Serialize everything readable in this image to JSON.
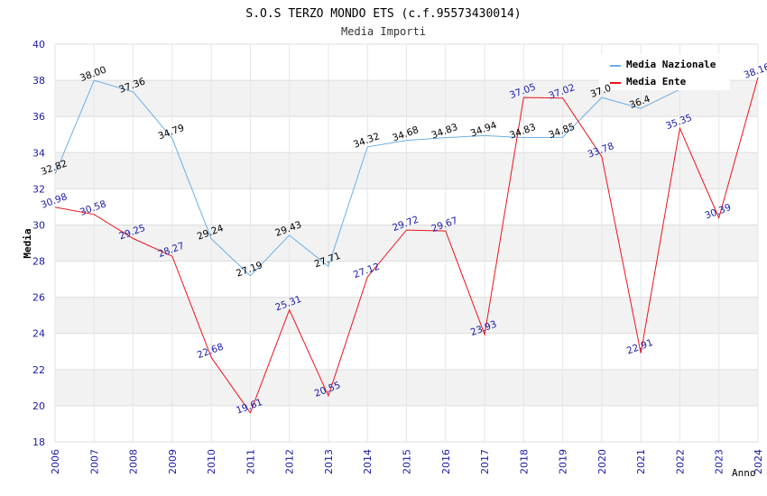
{
  "chart_data": {
    "type": "line",
    "title": "S.O.S TERZO MONDO ETS (c.f.95573430014)",
    "subtitle": "Media Importi",
    "xlabel": "Anno",
    "ylabel": "Media",
    "ylim": [
      18,
      40
    ],
    "yticks": [
      18,
      20,
      22,
      24,
      26,
      28,
      30,
      32,
      34,
      36,
      38,
      40
    ],
    "x": [
      "2006",
      "2007",
      "2008",
      "2009",
      "2010",
      "2011",
      "2012",
      "2013",
      "2014",
      "2015",
      "2016",
      "2017",
      "2018",
      "2019",
      "2020",
      "2021",
      "2022",
      "2023",
      "2024"
    ],
    "series": [
      {
        "name": "Media Nazionale",
        "color": "#6aaee8",
        "values": [
          32.82,
          38.0,
          37.36,
          34.79,
          29.24,
          27.19,
          29.43,
          27.71,
          34.32,
          34.68,
          34.83,
          34.94,
          34.83,
          34.85,
          37.05,
          36.45,
          37.5,
          null,
          null
        ],
        "labels": [
          "32.82",
          "38.00",
          "37.36",
          "34.79",
          "29.24",
          "27.19",
          "29.43",
          "27.71",
          "34.32",
          "34.68",
          "34.83",
          "34.94",
          "34.83",
          "34.85",
          "37.0",
          "36.4",
          "",
          "",
          ""
        ]
      },
      {
        "name": "Media Ente",
        "color": "#e8141b",
        "values": [
          30.98,
          30.58,
          29.25,
          28.27,
          22.68,
          19.61,
          25.31,
          20.55,
          27.12,
          29.72,
          29.67,
          23.93,
          37.05,
          37.02,
          33.78,
          22.91,
          35.35,
          30.39,
          38.16
        ],
        "labels": [
          "30.98",
          "30.58",
          "29.25",
          "28.27",
          "22.68",
          "19.61",
          "25.31",
          "20.55",
          "27.12",
          "29.72",
          "29.67",
          "23.93",
          "37.05",
          "37.02",
          "33.78",
          "22.91",
          "35.35",
          "30.39",
          "38.16"
        ]
      }
    ],
    "grid": true,
    "legend_position": "top-right"
  }
}
